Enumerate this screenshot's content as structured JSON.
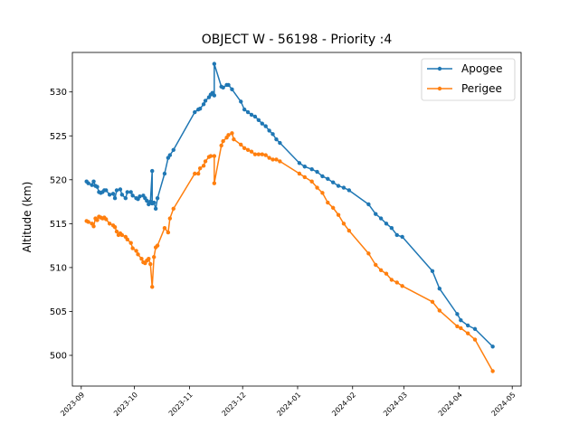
{
  "chart_data": {
    "type": "line",
    "title": "OBJECT W - 56198 - Priority :4",
    "xlabel": "",
    "ylabel": "Altitude (km)",
    "xlim": [
      "2023-08-27",
      "2024-05-06"
    ],
    "ylim": [
      496.5,
      534.5
    ],
    "yticks": [
      500,
      505,
      510,
      515,
      520,
      525,
      530
    ],
    "xticks": [
      "2023-09-01",
      "2023-10-01",
      "2023-11-01",
      "2023-12-01",
      "2024-01-01",
      "2024-02-01",
      "2024-03-01",
      "2024-04-01",
      "2024-05-01"
    ],
    "xtick_labels": [
      "2023-09",
      "2023-10",
      "2023-11",
      "2023-12",
      "2024-01",
      "2024-02",
      "2024-03",
      "2024-04",
      "2024-05"
    ],
    "legend_position": "top-right",
    "grid": false,
    "series": [
      {
        "name": "Apogee",
        "color": "#1f77b4",
        "points": [
          [
            "2023-09-04",
            519.8
          ],
          [
            "2023-09-05",
            519.6
          ],
          [
            "2023-09-07",
            519.4
          ],
          [
            "2023-09-08",
            519.8
          ],
          [
            "2023-09-09",
            519.3
          ],
          [
            "2023-09-10",
            519.2
          ],
          [
            "2023-09-11",
            518.6
          ],
          [
            "2023-09-12",
            518.5
          ],
          [
            "2023-09-13",
            518.6
          ],
          [
            "2023-09-14",
            518.8
          ],
          [
            "2023-09-15",
            518.8
          ],
          [
            "2023-09-17",
            518.3
          ],
          [
            "2023-09-19",
            518.4
          ],
          [
            "2023-09-20",
            517.9
          ],
          [
            "2023-09-21",
            518.8
          ],
          [
            "2023-09-23",
            518.9
          ],
          [
            "2023-09-24",
            518.3
          ],
          [
            "2023-09-26",
            517.9
          ],
          [
            "2023-09-27",
            518.6
          ],
          [
            "2023-09-29",
            518.6
          ],
          [
            "2023-09-30",
            518.2
          ],
          [
            "2023-10-02",
            517.9
          ],
          [
            "2023-10-03",
            517.8
          ],
          [
            "2023-10-04",
            518.1
          ],
          [
            "2023-10-06",
            518.2
          ],
          [
            "2023-10-07",
            517.9
          ],
          [
            "2023-10-08",
            517.6
          ],
          [
            "2023-10-09",
            517.2
          ],
          [
            "2023-10-10",
            517.5
          ],
          [
            "2023-10-11",
            521.0
          ],
          [
            "2023-10-11",
            517.3
          ],
          [
            "2023-10-12",
            517.4
          ],
          [
            "2023-10-13",
            516.7
          ],
          [
            "2023-10-14",
            517.9
          ],
          [
            "2023-10-18",
            520.7
          ],
          [
            "2023-10-20",
            522.5
          ],
          [
            "2023-10-21",
            522.8
          ],
          [
            "2023-10-23",
            523.4
          ],
          [
            "2023-11-04",
            527.7
          ],
          [
            "2023-11-06",
            528.0
          ],
          [
            "2023-11-07",
            528.1
          ],
          [
            "2023-11-09",
            528.6
          ],
          [
            "2023-11-10",
            529.0
          ],
          [
            "2023-11-12",
            529.4
          ],
          [
            "2023-11-13",
            529.7
          ],
          [
            "2023-11-14",
            529.9
          ],
          [
            "2023-11-15",
            529.6
          ],
          [
            "2023-11-15",
            533.2
          ],
          [
            "2023-11-19",
            530.6
          ],
          [
            "2023-11-20",
            530.5
          ],
          [
            "2023-11-22",
            530.8
          ],
          [
            "2023-11-23",
            530.8
          ],
          [
            "2023-11-25",
            530.3
          ],
          [
            "2023-11-30",
            528.9
          ],
          [
            "2023-12-02",
            528.0
          ],
          [
            "2023-12-04",
            527.7
          ],
          [
            "2023-12-06",
            527.4
          ],
          [
            "2023-12-08",
            527.2
          ],
          [
            "2023-12-10",
            526.8
          ],
          [
            "2023-12-12",
            526.4
          ],
          [
            "2023-12-14",
            526.1
          ],
          [
            "2023-12-16",
            525.6
          ],
          [
            "2023-12-18",
            525.2
          ],
          [
            "2023-12-20",
            524.6
          ],
          [
            "2023-12-22",
            524.2
          ],
          [
            "2024-01-02",
            521.9
          ],
          [
            "2024-01-05",
            521.5
          ],
          [
            "2024-01-09",
            521.2
          ],
          [
            "2024-01-12",
            520.9
          ],
          [
            "2024-01-15",
            520.4
          ],
          [
            "2024-01-18",
            520.1
          ],
          [
            "2024-01-21",
            519.7
          ],
          [
            "2024-01-24",
            519.3
          ],
          [
            "2024-01-27",
            519.1
          ],
          [
            "2024-01-30",
            518.8
          ],
          [
            "2024-02-10",
            517.2
          ],
          [
            "2024-02-14",
            516.1
          ],
          [
            "2024-02-17",
            515.6
          ],
          [
            "2024-02-20",
            515.0
          ],
          [
            "2024-02-23",
            514.5
          ],
          [
            "2024-02-26",
            513.7
          ],
          [
            "2024-02-29",
            513.5
          ],
          [
            "2024-03-17",
            509.6
          ],
          [
            "2024-03-21",
            507.6
          ],
          [
            "2024-03-31",
            504.7
          ],
          [
            "2024-04-02",
            504.0
          ],
          [
            "2024-04-06",
            503.4
          ],
          [
            "2024-04-10",
            503.0
          ],
          [
            "2024-04-20",
            501.0
          ]
        ]
      },
      {
        "name": "Perigee",
        "color": "#ff7f0e",
        "points": [
          [
            "2023-09-04",
            515.3
          ],
          [
            "2023-09-05",
            515.2
          ],
          [
            "2023-09-07",
            515.0
          ],
          [
            "2023-09-08",
            514.7
          ],
          [
            "2023-09-09",
            515.6
          ],
          [
            "2023-09-10",
            515.4
          ],
          [
            "2023-09-11",
            515.8
          ],
          [
            "2023-09-12",
            515.7
          ],
          [
            "2023-09-13",
            515.6
          ],
          [
            "2023-09-14",
            515.7
          ],
          [
            "2023-09-15",
            515.5
          ],
          [
            "2023-09-17",
            515.0
          ],
          [
            "2023-09-19",
            514.8
          ],
          [
            "2023-09-20",
            514.6
          ],
          [
            "2023-09-21",
            514.1
          ],
          [
            "2023-09-22",
            513.7
          ],
          [
            "2023-09-23",
            513.9
          ],
          [
            "2023-09-24",
            513.7
          ],
          [
            "2023-09-26",
            513.5
          ],
          [
            "2023-09-27",
            513.2
          ],
          [
            "2023-09-29",
            512.8
          ],
          [
            "2023-09-30",
            512.2
          ],
          [
            "2023-10-02",
            511.9
          ],
          [
            "2023-10-03",
            511.5
          ],
          [
            "2023-10-05",
            511.0
          ],
          [
            "2023-10-06",
            510.6
          ],
          [
            "2023-10-07",
            510.5
          ],
          [
            "2023-10-08",
            510.8
          ],
          [
            "2023-10-09",
            511.0
          ],
          [
            "2023-10-10",
            510.4
          ],
          [
            "2023-10-11",
            507.8
          ],
          [
            "2023-10-12",
            511.2
          ],
          [
            "2023-10-13",
            512.3
          ],
          [
            "2023-10-14",
            512.5
          ],
          [
            "2023-10-18",
            514.5
          ],
          [
            "2023-10-20",
            514.0
          ],
          [
            "2023-10-21",
            515.6
          ],
          [
            "2023-10-23",
            516.7
          ],
          [
            "2023-11-04",
            520.7
          ],
          [
            "2023-11-06",
            520.7
          ],
          [
            "2023-11-07",
            521.3
          ],
          [
            "2023-11-09",
            521.6
          ],
          [
            "2023-11-10",
            522.1
          ],
          [
            "2023-11-12",
            522.6
          ],
          [
            "2023-11-13",
            522.7
          ],
          [
            "2023-11-15",
            522.7
          ],
          [
            "2023-11-15",
            519.6
          ],
          [
            "2023-11-19",
            523.9
          ],
          [
            "2023-11-20",
            524.4
          ],
          [
            "2023-11-22",
            524.8
          ],
          [
            "2023-11-23",
            525.1
          ],
          [
            "2023-11-25",
            525.3
          ],
          [
            "2023-11-26",
            524.6
          ],
          [
            "2023-11-30",
            524.0
          ],
          [
            "2023-12-02",
            523.6
          ],
          [
            "2023-12-04",
            523.4
          ],
          [
            "2023-12-06",
            523.2
          ],
          [
            "2023-12-08",
            522.9
          ],
          [
            "2023-12-10",
            522.9
          ],
          [
            "2023-12-12",
            522.9
          ],
          [
            "2023-12-14",
            522.8
          ],
          [
            "2023-12-16",
            522.5
          ],
          [
            "2023-12-18",
            522.3
          ],
          [
            "2023-12-20",
            522.3
          ],
          [
            "2023-12-22",
            522.1
          ],
          [
            "2024-01-02",
            520.7
          ],
          [
            "2024-01-05",
            520.3
          ],
          [
            "2024-01-09",
            519.8
          ],
          [
            "2024-01-12",
            519.1
          ],
          [
            "2024-01-15",
            518.5
          ],
          [
            "2024-01-18",
            517.4
          ],
          [
            "2024-01-21",
            516.8
          ],
          [
            "2024-01-24",
            516.0
          ],
          [
            "2024-01-27",
            515.0
          ],
          [
            "2024-01-30",
            514.2
          ],
          [
            "2024-02-10",
            511.6
          ],
          [
            "2024-02-14",
            510.3
          ],
          [
            "2024-02-17",
            509.7
          ],
          [
            "2024-02-20",
            509.3
          ],
          [
            "2024-02-23",
            508.6
          ],
          [
            "2024-02-26",
            508.3
          ],
          [
            "2024-02-29",
            507.9
          ],
          [
            "2024-03-17",
            506.1
          ],
          [
            "2024-03-21",
            505.1
          ],
          [
            "2024-03-31",
            503.3
          ],
          [
            "2024-04-02",
            503.1
          ],
          [
            "2024-04-06",
            502.5
          ],
          [
            "2024-04-10",
            501.8
          ],
          [
            "2024-04-20",
            498.2
          ]
        ]
      }
    ]
  }
}
